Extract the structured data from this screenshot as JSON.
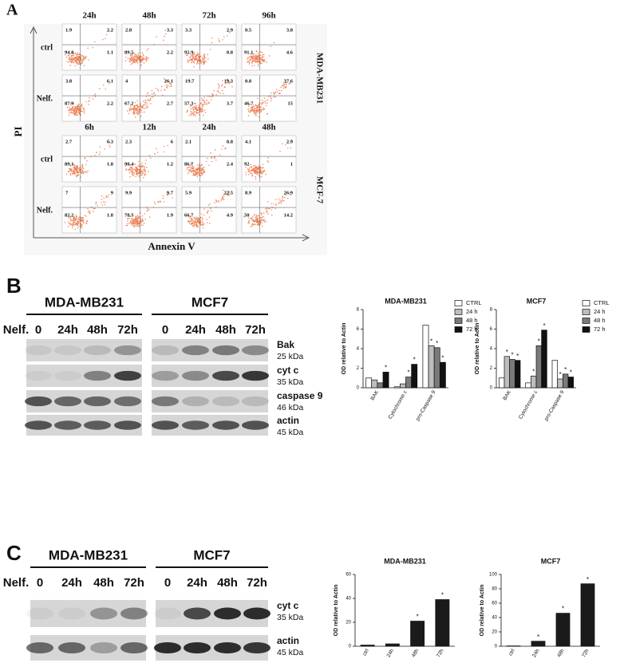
{
  "panel_a": {
    "label": "A",
    "y_axis": "PI",
    "x_axis": "Annexin V",
    "groups": [
      {
        "cell_line": "MDA-MB231",
        "times": [
          "24h",
          "48h",
          "72h",
          "96h"
        ],
        "rows": [
          {
            "label": "ctrl",
            "plots": [
              [
                1.9,
                2.2,
                94.8,
                1.1
              ],
              [
                2.8,
                3.3,
                89.5,
                2.2
              ],
              [
                3.3,
                2.9,
                92.9,
                0.8
              ],
              [
                0.5,
                3.8,
                91.1,
                4.6
              ]
            ]
          },
          {
            "label": "Nelf.",
            "plots": [
              [
                3.8,
                6.1,
                87.9,
                2.2
              ],
              [
                4,
                26.1,
                67.2,
                2.7
              ],
              [
                19.7,
                19.3,
                57.3,
                3.7
              ],
              [
                0.8,
                37.6,
                46.7,
                15
              ]
            ]
          }
        ]
      },
      {
        "cell_line": "MCF-7",
        "times": [
          "6h",
          "12h",
          "24h",
          "48h"
        ],
        "rows": [
          {
            "label": "ctrl",
            "plots": [
              [
                2.7,
                6.3,
                89.1,
                1.8
              ],
              [
                2.3,
                6,
                90.4,
                1.2
              ],
              [
                2.1,
                8.8,
                86.7,
                2.4
              ],
              [
                4.1,
                2.9,
                92,
                1
              ]
            ]
          },
          {
            "label": "Nelf.",
            "plots": [
              [
                7,
                9,
                82.2,
                1.8
              ],
              [
                9.9,
                9.7,
                78.5,
                1.9
              ],
              [
                5.9,
                22.5,
                66.7,
                4.9
              ],
              [
                8.9,
                26.9,
                50,
                14.2
              ]
            ]
          }
        ]
      }
    ]
  },
  "panel_b": {
    "label": "B",
    "treatment": "Nelf.",
    "blots": [
      {
        "cell_line": "MDA-MB231",
        "lanes": [
          "0",
          "24h",
          "48h",
          "72h"
        ]
      },
      {
        "cell_line": "MCF7",
        "lanes": [
          "0",
          "24h",
          "48h",
          "72h"
        ]
      }
    ],
    "proteins": [
      {
        "name": "Bak",
        "size": "25 kDa"
      },
      {
        "name": "cyt c",
        "size": "35 kDa"
      },
      {
        "name": "caspase 9",
        "size": "46 kDa"
      },
      {
        "name": "actin",
        "size": "45 kDa"
      }
    ]
  },
  "panel_c": {
    "label": "C",
    "treatment": "Nelf.",
    "blots": [
      {
        "cell_line": "MDA-MB231",
        "lanes": [
          "0",
          "24h",
          "48h",
          "72h"
        ]
      },
      {
        "cell_line": "MCF7",
        "lanes": [
          "0",
          "24h",
          "48h",
          "72h"
        ]
      }
    ],
    "proteins": [
      {
        "name": "cyt c",
        "size": "35 kDa"
      },
      {
        "name": "actin",
        "size": "45 kDa"
      }
    ]
  },
  "chart_data": [
    {
      "type": "bar",
      "title": "MDA-MB231",
      "y_label": "OD relative to Actin",
      "categories": [
        "BAK",
        "Cytochrome c",
        "pro-Caspase 9"
      ],
      "series": [
        {
          "name": "CTRL",
          "color": "#ffffff",
          "values": [
            1.0,
            0.1,
            6.4
          ],
          "significance": [
            null,
            null,
            null
          ]
        },
        {
          "name": "24 h",
          "color": "#bdbdbd",
          "values": [
            0.8,
            0.4,
            4.3
          ],
          "significance": [
            null,
            null,
            "*"
          ]
        },
        {
          "name": "48 h",
          "color": "#7a7a7a",
          "values": [
            0.5,
            1.1,
            4.1
          ],
          "significance": [
            null,
            "*",
            "*"
          ]
        },
        {
          "name": "72 h",
          "color": "#111111",
          "values": [
            1.6,
            2.4,
            2.6
          ],
          "significance": [
            "*",
            "*",
            "*"
          ]
        }
      ],
      "ylim": [
        0,
        8
      ],
      "yticks": [
        0,
        2,
        4,
        6,
        8
      ],
      "legend": "right"
    },
    {
      "type": "bar",
      "title": "MCF7",
      "y_label": "OD relative to Actin",
      "categories": [
        "BAK",
        "Cytochrome c",
        "pro-Caspase 9"
      ],
      "series": [
        {
          "name": "CTRL",
          "color": "#ffffff",
          "values": [
            1.0,
            0.5,
            2.8
          ],
          "significance": [
            null,
            null,
            null
          ]
        },
        {
          "name": "24 h",
          "color": "#bdbdbd",
          "values": [
            3.2,
            1.2,
            0.9
          ],
          "significance": [
            "*",
            "*",
            "*"
          ]
        },
        {
          "name": "48 h",
          "color": "#7a7a7a",
          "values": [
            2.9,
            4.3,
            1.4
          ],
          "significance": [
            "*",
            "*",
            "*"
          ]
        },
        {
          "name": "72 h",
          "color": "#111111",
          "values": [
            2.8,
            5.9,
            1.1
          ],
          "significance": [
            "*",
            "*",
            "*"
          ]
        }
      ],
      "ylim": [
        0,
        8
      ],
      "yticks": [
        0,
        2,
        4,
        6,
        8
      ],
      "legend": "right"
    },
    {
      "type": "bar",
      "title": "MDA-MB231",
      "y_label": "OD relative to Actin",
      "categories": [
        "ctrl",
        "24h",
        "48h",
        "72h"
      ],
      "values": [
        1,
        2,
        21,
        39
      ],
      "color": "#1a1a1a",
      "significance": [
        null,
        null,
        "*",
        "*"
      ],
      "ylim": [
        0,
        60
      ],
      "yticks": [
        0,
        20,
        40,
        60
      ]
    },
    {
      "type": "bar",
      "title": "MCF7",
      "y_label": "OD relative to Actin",
      "categories": [
        "ctrl",
        "24h",
        "48h",
        "72h"
      ],
      "values": [
        0.5,
        7,
        46,
        87
      ],
      "color": "#1a1a1a",
      "significance": [
        null,
        "*",
        "*",
        "*"
      ],
      "ylim": [
        0,
        100
      ],
      "yticks": [
        0,
        20,
        40,
        60,
        80,
        100
      ]
    }
  ]
}
